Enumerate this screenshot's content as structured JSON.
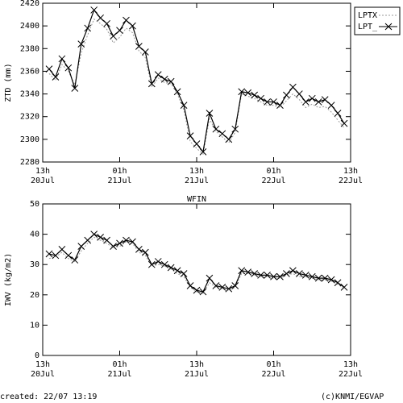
{
  "chart_data": [
    {
      "type": "line",
      "ylabel": "ZTD (mm)",
      "ylim": [
        2280,
        2420
      ],
      "yticks": [
        2280,
        2300,
        2320,
        2340,
        2360,
        2380,
        2400,
        2420
      ],
      "xlim": [
        0,
        48
      ],
      "xticks": [
        {
          "value": 0,
          "label": "13h\n20Jul"
        },
        {
          "value": 12,
          "label": "01h\n21Jul"
        },
        {
          "value": 24,
          "label": "13h\n21Jul"
        },
        {
          "value": 36,
          "label": "01h\n22Jul"
        },
        {
          "value": 48,
          "label": "13h\n22Jul"
        }
      ],
      "legend": "outside-right",
      "x": [
        1,
        2,
        3,
        4,
        5,
        6,
        7,
        8,
        9,
        10,
        11,
        12,
        13,
        14,
        15,
        16,
        17,
        18,
        19,
        20,
        21,
        22,
        23,
        24,
        25,
        26,
        27,
        28,
        29,
        30,
        31,
        32,
        33,
        34,
        35,
        36,
        37,
        38,
        39,
        40,
        41,
        42,
        43,
        44,
        45,
        46,
        47
      ],
      "series": [
        {
          "name": "LPTX",
          "color": "#999999",
          "style": "dotted",
          "values": [
            2358,
            2352,
            2366,
            2360,
            2348,
            2376,
            2392,
            2406,
            2402,
            2397,
            2385,
            2390,
            2398,
            2394,
            2378,
            2372,
            2346,
            2354,
            2350,
            2349,
            2340,
            2326,
            2298,
            2292,
            2287,
            2318,
            2307,
            2302,
            2297,
            2306,
            2340,
            2338,
            2336,
            2333,
            2330,
            2330,
            2328,
            2334,
            2340,
            2335,
            2328,
            2331,
            2328,
            2329,
            2324,
            2317,
            2310
          ]
        },
        {
          "name": "LPT_",
          "color": "#000000",
          "style": "solid",
          "marker": "x",
          "values": [
            2362,
            2355,
            2371,
            2363,
            2345,
            2384,
            2398,
            2414,
            2407,
            2402,
            2391,
            2396,
            2405,
            2400,
            2382,
            2377,
            2349,
            2357,
            2353,
            2351,
            2342,
            2330,
            2303,
            2296,
            2289,
            2323,
            2309,
            2305,
            2300,
            2309,
            2342,
            2341,
            2339,
            2336,
            2333,
            2333,
            2330,
            2339,
            2346,
            2340,
            2333,
            2336,
            2333,
            2335,
            2330,
            2323,
            2314
          ]
        }
      ]
    },
    {
      "type": "line",
      "title": "WFIN",
      "ylabel": "IWV (kg/m2)",
      "ylim": [
        0,
        50
      ],
      "yticks": [
        0,
        10,
        20,
        30,
        40,
        50
      ],
      "xlim": [
        0,
        48
      ],
      "xticks": [
        {
          "value": 0,
          "label": "13h\n20Jul"
        },
        {
          "value": 12,
          "label": "01h\n21Jul"
        },
        {
          "value": 24,
          "label": "13h\n21Jul"
        },
        {
          "value": 36,
          "label": "01h\n22Jul"
        },
        {
          "value": 48,
          "label": "13h\n22Jul"
        }
      ],
      "x": [
        1,
        2,
        3,
        4,
        5,
        6,
        7,
        8,
        9,
        10,
        11,
        12,
        13,
        14,
        15,
        16,
        17,
        18,
        19,
        20,
        21,
        22,
        23,
        24,
        25,
        26,
        27,
        28,
        29,
        30,
        31,
        32,
        33,
        34,
        35,
        36,
        37,
        38,
        39,
        40,
        41,
        42,
        43,
        44,
        45,
        46,
        47
      ],
      "series": [
        {
          "name": "LPTX",
          "color": "#999999",
          "style": "dotted",
          "values": [
            32,
            32.5,
            34,
            32,
            31,
            34.5,
            37,
            39,
            38,
            37,
            35.5,
            36,
            37.5,
            37,
            34,
            33,
            29.5,
            30,
            29.5,
            28.5,
            27,
            26,
            22.5,
            21,
            20.5,
            24,
            22.5,
            22,
            21.5,
            22.5,
            27,
            27,
            26.5,
            26,
            26,
            25.5,
            25.5,
            26.5,
            27,
            26,
            26,
            25.5,
            25,
            25,
            24.5,
            23.5,
            22
          ]
        },
        {
          "name": "LPT_",
          "color": "#000000",
          "style": "solid",
          "marker": "x",
          "values": [
            33.5,
            33,
            35,
            33,
            31.5,
            36,
            38,
            40,
            39,
            38,
            36,
            37,
            38,
            37.5,
            35,
            34,
            30,
            31,
            30,
            29,
            28,
            27,
            23,
            21.5,
            21,
            25.5,
            23,
            22.5,
            22,
            23,
            28,
            27.5,
            27,
            26.5,
            26.5,
            26,
            26,
            27,
            28,
            27,
            26.5,
            26,
            25.5,
            25.5,
            25,
            24,
            22.5
          ]
        }
      ]
    }
  ],
  "footer": {
    "created": "created: 22/07 13:19",
    "credit": "(c)KNMI/EGVAP"
  }
}
